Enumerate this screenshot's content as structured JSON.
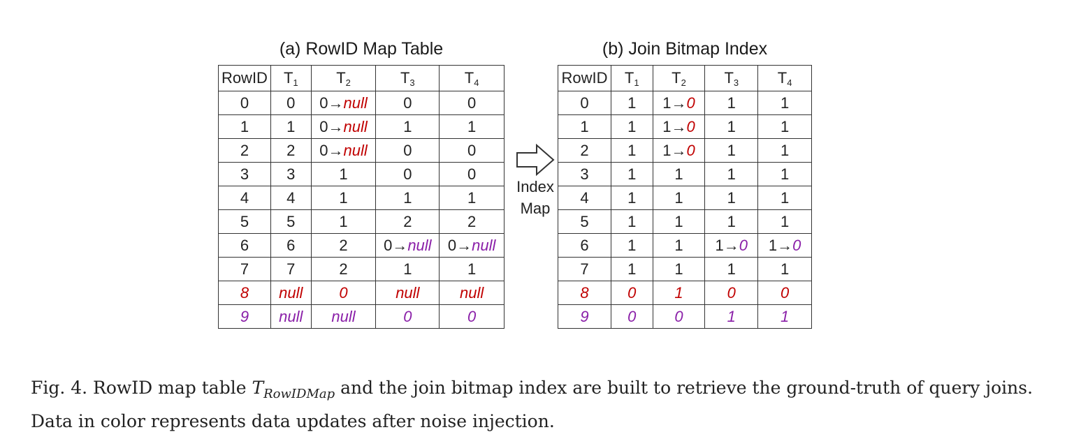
{
  "table_a": {
    "title": "(a) RowID Map Table",
    "headers": [
      "RowID",
      "T1",
      "T2",
      "T3",
      "T4"
    ],
    "rows": [
      [
        {
          "t": "0"
        },
        {
          "t": "0"
        },
        {
          "t": "0→",
          "c": "red",
          "u": "null"
        },
        {
          "t": "0"
        },
        {
          "t": "0"
        }
      ],
      [
        {
          "t": "1"
        },
        {
          "t": "1"
        },
        {
          "t": "0→",
          "c": "red",
          "u": "null"
        },
        {
          "t": "1"
        },
        {
          "t": "1"
        }
      ],
      [
        {
          "t": "2"
        },
        {
          "t": "2"
        },
        {
          "t": "0→",
          "c": "red",
          "u": "null"
        },
        {
          "t": "0"
        },
        {
          "t": "0"
        }
      ],
      [
        {
          "t": "3"
        },
        {
          "t": "3"
        },
        {
          "t": "1"
        },
        {
          "t": "0"
        },
        {
          "t": "0"
        }
      ],
      [
        {
          "t": "4"
        },
        {
          "t": "4"
        },
        {
          "t": "1"
        },
        {
          "t": "1"
        },
        {
          "t": "1"
        }
      ],
      [
        {
          "t": "5"
        },
        {
          "t": "5"
        },
        {
          "t": "1"
        },
        {
          "t": "2"
        },
        {
          "t": "2"
        }
      ],
      [
        {
          "t": "6"
        },
        {
          "t": "6"
        },
        {
          "t": "2"
        },
        {
          "t": "0→",
          "c": "purple",
          "u": "null"
        },
        {
          "t": "0→",
          "c": "purple",
          "u": "null"
        }
      ],
      [
        {
          "t": "7"
        },
        {
          "t": "7"
        },
        {
          "t": "2"
        },
        {
          "t": "1"
        },
        {
          "t": "1"
        }
      ],
      [
        {
          "t": "8",
          "c": "red"
        },
        {
          "t": "null",
          "c": "red"
        },
        {
          "t": "0",
          "c": "red"
        },
        {
          "t": "null",
          "c": "red"
        },
        {
          "t": "null",
          "c": "red"
        }
      ],
      [
        {
          "t": "9",
          "c": "purple"
        },
        {
          "t": "null",
          "c": "purple"
        },
        {
          "t": "null",
          "c": "purple"
        },
        {
          "t": "0",
          "c": "purple"
        },
        {
          "t": "0",
          "c": "purple"
        }
      ]
    ]
  },
  "table_b": {
    "title": "(b) Join Bitmap Index",
    "headers": [
      "RowID",
      "T1",
      "T2",
      "T3",
      "T4"
    ],
    "rows": [
      [
        {
          "t": "0"
        },
        {
          "t": "1"
        },
        {
          "t": "1→",
          "c": "red",
          "u": "0"
        },
        {
          "t": "1"
        },
        {
          "t": "1"
        }
      ],
      [
        {
          "t": "1"
        },
        {
          "t": "1"
        },
        {
          "t": "1→",
          "c": "red",
          "u": "0"
        },
        {
          "t": "1"
        },
        {
          "t": "1"
        }
      ],
      [
        {
          "t": "2"
        },
        {
          "t": "1"
        },
        {
          "t": "1→",
          "c": "red",
          "u": "0"
        },
        {
          "t": "1"
        },
        {
          "t": "1"
        }
      ],
      [
        {
          "t": "3"
        },
        {
          "t": "1"
        },
        {
          "t": "1"
        },
        {
          "t": "1"
        },
        {
          "t": "1"
        }
      ],
      [
        {
          "t": "4"
        },
        {
          "t": "1"
        },
        {
          "t": "1"
        },
        {
          "t": "1"
        },
        {
          "t": "1"
        }
      ],
      [
        {
          "t": "5"
        },
        {
          "t": "1"
        },
        {
          "t": "1"
        },
        {
          "t": "1"
        },
        {
          "t": "1"
        }
      ],
      [
        {
          "t": "6"
        },
        {
          "t": "1"
        },
        {
          "t": "1"
        },
        {
          "t": "1→",
          "c": "purple",
          "u": "0"
        },
        {
          "t": "1→",
          "c": "purple",
          "u": "0"
        }
      ],
      [
        {
          "t": "7"
        },
        {
          "t": "1"
        },
        {
          "t": "1"
        },
        {
          "t": "1"
        },
        {
          "t": "1"
        }
      ],
      [
        {
          "t": "8",
          "c": "red"
        },
        {
          "t": "0",
          "c": "red"
        },
        {
          "t": "1",
          "c": "red"
        },
        {
          "t": "0",
          "c": "red"
        },
        {
          "t": "0",
          "c": "red"
        }
      ],
      [
        {
          "t": "9",
          "c": "purple"
        },
        {
          "t": "0",
          "c": "purple"
        },
        {
          "t": "0",
          "c": "purple"
        },
        {
          "t": "1",
          "c": "purple"
        },
        {
          "t": "1",
          "c": "purple"
        }
      ]
    ]
  },
  "arrow_label_1": "Index",
  "arrow_label_2": "Map",
  "caption": {
    "prefix": "Fig. 4.  RowID map table ",
    "math_main": "T",
    "math_sub": "RowIDMap",
    "suffix": " and the join bitmap index are built to retrieve the ground-truth of query joins. Data in color represents data updates after noise injection."
  },
  "colors": {
    "update_red": "#c00000",
    "update_purple": "#8a1fa8"
  }
}
